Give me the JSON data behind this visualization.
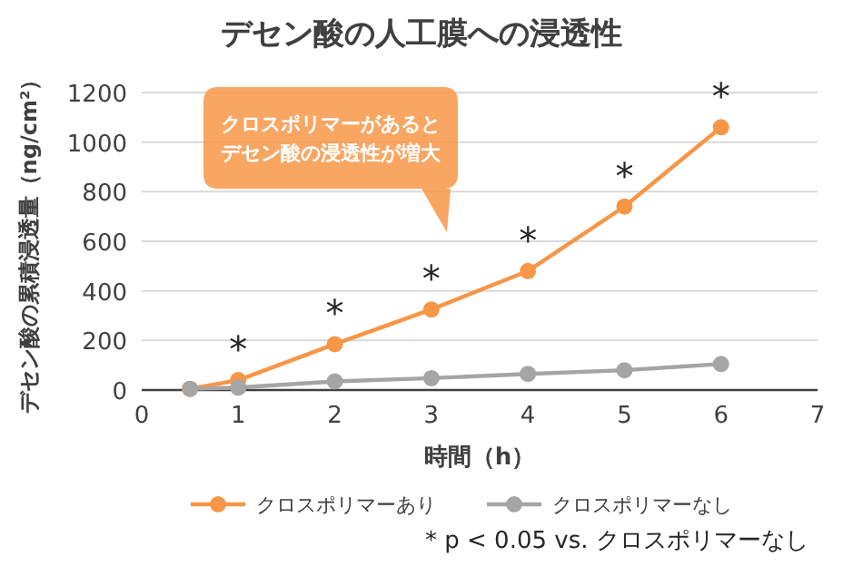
{
  "chart_data": {
    "type": "line",
    "title": "デセン酸の人工膜への浸透性",
    "xlabel": "時間（h）",
    "ylabel": "デセン酸の累積浸透量（ng/cm²）",
    "x": [
      0.5,
      1,
      2,
      3,
      4,
      5,
      6
    ],
    "series": [
      {
        "name": "クロスポリマーあり",
        "color": "#f79646",
        "values": [
          5,
          40,
          185,
          325,
          480,
          740,
          1060
        ]
      },
      {
        "name": "クロスポリマーなし",
        "color": "#a5a5a5",
        "values": [
          5,
          10,
          35,
          48,
          65,
          80,
          105
        ]
      }
    ],
    "xlim": [
      0,
      7
    ],
    "ylim": [
      0,
      1200
    ],
    "xticks": [
      0,
      1,
      2,
      3,
      4,
      5,
      6,
      7
    ],
    "yticks": [
      0,
      200,
      400,
      600,
      800,
      1000,
      1200
    ],
    "grid": "y",
    "legend": "bottom",
    "marker": "circle",
    "annotations": [
      "クロスポリマーがあると",
      "デセン酸の浸透性が増大",
      {
        "text": "*",
        "x": 1,
        "y": 40
      },
      {
        "text": "*",
        "x": 2,
        "y": 185
      },
      {
        "text": "*",
        "x": 3,
        "y": 325
      },
      {
        "text": "*",
        "x": 4,
        "y": 480
      },
      {
        "text": "*",
        "x": 5,
        "y": 740
      },
      {
        "text": "*",
        "x": 6,
        "y": 1060
      },
      "* p < 0.05 vs. クロスポリマーなし"
    ]
  }
}
